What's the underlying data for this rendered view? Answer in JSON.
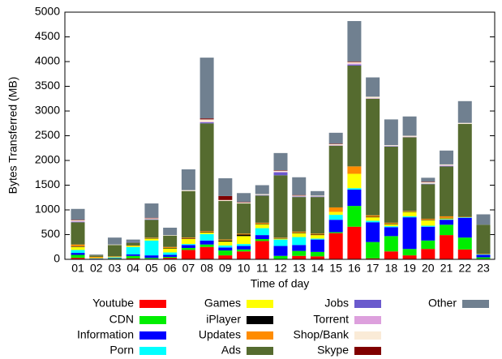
{
  "chart_data": {
    "type": "stacked_bar",
    "y_label": "Bytes Transferred (MB)",
    "x_label": "Time of day",
    "categories": [
      "01",
      "02",
      "03",
      "04",
      "05",
      "06",
      "07",
      "08",
      "09",
      "10",
      "11",
      "12",
      "13",
      "14",
      "15",
      "16",
      "17",
      "18",
      "19",
      "20",
      "21",
      "22",
      "23"
    ],
    "ylim": [
      0,
      5000
    ],
    "yticks": [
      0,
      500,
      1000,
      1500,
      2000,
      2500,
      3000,
      3500,
      4000,
      4500,
      5000
    ],
    "grid": false,
    "series": [
      {
        "name": "Youtube",
        "color": "#ff0000",
        "values": [
          30,
          0,
          10,
          20,
          10,
          30,
          190,
          250,
          80,
          160,
          370,
          10,
          70,
          60,
          530,
          660,
          20,
          160,
          80,
          210,
          490,
          200,
          10
        ]
      },
      {
        "name": "CDN",
        "color": "#00ee00",
        "values": [
          60,
          10,
          10,
          50,
          20,
          20,
          40,
          50,
          100,
          40,
          40,
          60,
          100,
          90,
          20,
          420,
          330,
          310,
          130,
          170,
          210,
          240,
          30
        ]
      },
      {
        "name": "Information",
        "color": "#0000ff",
        "values": [
          40,
          5,
          10,
          30,
          50,
          40,
          60,
          80,
          60,
          70,
          80,
          200,
          120,
          250,
          250,
          330,
          400,
          180,
          640,
          280,
          100,
          400,
          50
        ]
      },
      {
        "name": "Porn",
        "color": "#00ffff",
        "values": [
          60,
          5,
          10,
          150,
          300,
          50,
          20,
          130,
          40,
          40,
          140,
          130,
          160,
          20,
          100,
          30,
          30,
          20,
          20,
          20,
          10,
          10,
          10
        ]
      },
      {
        "name": "Games",
        "color": "#ffff00",
        "values": [
          60,
          10,
          10,
          20,
          40,
          80,
          100,
          30,
          80,
          160,
          80,
          20,
          80,
          70,
          60,
          290,
          70,
          40,
          90,
          110,
          20,
          0,
          0
        ]
      },
      {
        "name": "iPlayer",
        "color": "#000000",
        "values": [
          10,
          0,
          0,
          0,
          10,
          10,
          10,
          10,
          20,
          30,
          10,
          10,
          10,
          10,
          0,
          0,
          10,
          10,
          10,
          10,
          10,
          0,
          0
        ]
      },
      {
        "name": "Updates",
        "color": "#ff8c00",
        "values": [
          40,
          20,
          10,
          10,
          10,
          20,
          20,
          20,
          20,
          20,
          20,
          10,
          20,
          20,
          90,
          150,
          30,
          20,
          10,
          20,
          30,
          10,
          10
        ]
      },
      {
        "name": "Ads",
        "color": "#556b2f",
        "values": [
          450,
          30,
          230,
          60,
          360,
          230,
          940,
          2180,
          780,
          610,
          550,
          1260,
          700,
          740,
          1250,
          2040,
          2360,
          1540,
          1490,
          700,
          1010,
          1880,
          590
        ]
      },
      {
        "name": "Jobs",
        "color": "#6a5acd",
        "values": [
          10,
          0,
          0,
          10,
          10,
          0,
          0,
          20,
          0,
          0,
          10,
          60,
          10,
          10,
          0,
          20,
          0,
          10,
          0,
          10,
          10,
          0,
          0
        ]
      },
      {
        "name": "Torrent",
        "color": "#dda0dd",
        "values": [
          10,
          0,
          0,
          0,
          0,
          0,
          0,
          10,
          0,
          0,
          0,
          10,
          0,
          0,
          10,
          20,
          10,
          0,
          10,
          0,
          10,
          0,
          0
        ]
      },
      {
        "name": "Shop/Bank",
        "color": "#faebd7",
        "values": [
          20,
          5,
          10,
          0,
          20,
          10,
          20,
          50,
          20,
          20,
          20,
          20,
          20,
          20,
          20,
          30,
          30,
          20,
          20,
          30,
          20,
          20,
          0
        ]
      },
      {
        "name": "Skype",
        "color": "#800000",
        "values": [
          10,
          0,
          0,
          0,
          10,
          0,
          0,
          20,
          80,
          10,
          0,
          10,
          10,
          0,
          10,
          10,
          0,
          0,
          0,
          10,
          0,
          0,
          0
        ]
      },
      {
        "name": "Other",
        "color": "#708090",
        "values": [
          220,
          15,
          140,
          50,
          290,
          150,
          420,
          1230,
          360,
          180,
          180,
          350,
          360,
          90,
          220,
          820,
          390,
          520,
          390,
          80,
          280,
          440,
          210
        ]
      }
    ]
  }
}
